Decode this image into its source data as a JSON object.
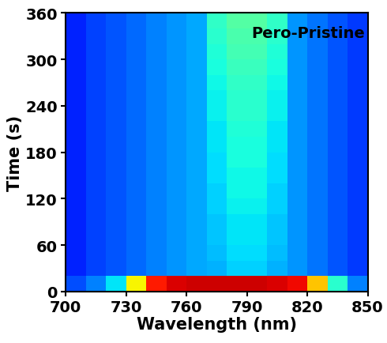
{
  "chart_data": {
    "type": "heatmap",
    "annotation": "Pero-Pristine",
    "x_label": "Wavelength (nm)",
    "y_label": "Time (s)",
    "x": [
      705,
      715,
      725,
      735,
      745,
      755,
      765,
      775,
      785,
      795,
      805,
      815,
      825,
      835,
      845
    ],
    "y": [
      10,
      30,
      50,
      70,
      90,
      110,
      130,
      150,
      170,
      190,
      210,
      230,
      250,
      270,
      290,
      310,
      330,
      350
    ],
    "values": [
      [
        0.2,
        0.25,
        0.35,
        0.65,
        0.88,
        0.92,
        0.93,
        0.93,
        0.93,
        0.93,
        0.92,
        0.9,
        0.7,
        0.4,
        0.25
      ],
      [
        0.16,
        0.19,
        0.21,
        0.23,
        0.25,
        0.27,
        0.29,
        0.3,
        0.33,
        0.33,
        0.3,
        0.27,
        0.24,
        0.21,
        0.18
      ],
      [
        0.16,
        0.19,
        0.21,
        0.23,
        0.25,
        0.27,
        0.29,
        0.31,
        0.34,
        0.34,
        0.31,
        0.27,
        0.24,
        0.21,
        0.18
      ],
      [
        0.16,
        0.19,
        0.21,
        0.23,
        0.25,
        0.27,
        0.29,
        0.32,
        0.35,
        0.35,
        0.32,
        0.27,
        0.24,
        0.21,
        0.18
      ],
      [
        0.16,
        0.19,
        0.21,
        0.23,
        0.25,
        0.27,
        0.29,
        0.32,
        0.35,
        0.35,
        0.32,
        0.27,
        0.24,
        0.21,
        0.18
      ],
      [
        0.16,
        0.19,
        0.21,
        0.23,
        0.25,
        0.27,
        0.29,
        0.33,
        0.36,
        0.36,
        0.33,
        0.27,
        0.24,
        0.21,
        0.18
      ],
      [
        0.16,
        0.19,
        0.21,
        0.23,
        0.25,
        0.27,
        0.29,
        0.33,
        0.37,
        0.37,
        0.33,
        0.27,
        0.24,
        0.21,
        0.18
      ],
      [
        0.16,
        0.19,
        0.21,
        0.23,
        0.25,
        0.27,
        0.29,
        0.34,
        0.37,
        0.37,
        0.34,
        0.27,
        0.24,
        0.21,
        0.18
      ],
      [
        0.16,
        0.19,
        0.21,
        0.23,
        0.25,
        0.27,
        0.29,
        0.34,
        0.38,
        0.38,
        0.34,
        0.27,
        0.24,
        0.21,
        0.18
      ],
      [
        0.16,
        0.19,
        0.21,
        0.23,
        0.25,
        0.27,
        0.29,
        0.35,
        0.38,
        0.38,
        0.35,
        0.27,
        0.24,
        0.21,
        0.18
      ],
      [
        0.16,
        0.19,
        0.21,
        0.23,
        0.25,
        0.27,
        0.29,
        0.35,
        0.39,
        0.39,
        0.35,
        0.27,
        0.24,
        0.21,
        0.18
      ],
      [
        0.16,
        0.19,
        0.21,
        0.23,
        0.25,
        0.27,
        0.29,
        0.36,
        0.4,
        0.4,
        0.36,
        0.27,
        0.24,
        0.21,
        0.18
      ],
      [
        0.16,
        0.19,
        0.21,
        0.23,
        0.25,
        0.27,
        0.29,
        0.36,
        0.4,
        0.4,
        0.36,
        0.27,
        0.24,
        0.21,
        0.18
      ],
      [
        0.16,
        0.19,
        0.21,
        0.23,
        0.25,
        0.27,
        0.29,
        0.37,
        0.41,
        0.41,
        0.37,
        0.27,
        0.24,
        0.21,
        0.18
      ],
      [
        0.16,
        0.19,
        0.21,
        0.23,
        0.25,
        0.27,
        0.29,
        0.38,
        0.42,
        0.42,
        0.38,
        0.27,
        0.24,
        0.21,
        0.18
      ],
      [
        0.16,
        0.19,
        0.21,
        0.23,
        0.25,
        0.27,
        0.29,
        0.39,
        0.43,
        0.43,
        0.39,
        0.27,
        0.24,
        0.21,
        0.18
      ],
      [
        0.16,
        0.19,
        0.21,
        0.23,
        0.25,
        0.27,
        0.29,
        0.4,
        0.44,
        0.44,
        0.4,
        0.27,
        0.24,
        0.21,
        0.18
      ],
      [
        0.16,
        0.19,
        0.21,
        0.23,
        0.25,
        0.27,
        0.29,
        0.41,
        0.45,
        0.45,
        0.41,
        0.27,
        0.24,
        0.21,
        0.18
      ]
    ],
    "color_range": [
      0,
      1
    ],
    "xlim": [
      700,
      850
    ],
    "xticks": [
      700,
      730,
      760,
      790,
      820,
      850
    ],
    "ylim": [
      0,
      360
    ],
    "yticks": [
      0,
      60,
      120,
      180,
      240,
      300,
      360
    ],
    "grid": false
  }
}
